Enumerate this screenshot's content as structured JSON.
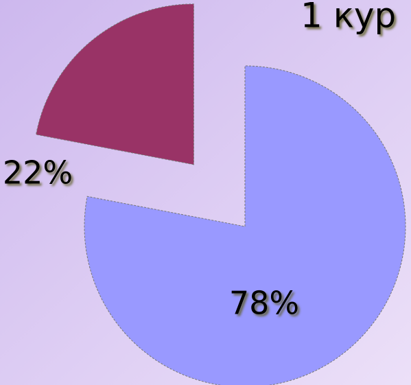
{
  "chart_data": {
    "type": "pie",
    "title": "1 кур",
    "categories": [
      null,
      null
    ],
    "values": [
      78,
      22
    ],
    "value_labels": [
      "78%",
      "22%"
    ],
    "colors": [
      "#9999ff",
      "#993366"
    ]
  }
}
